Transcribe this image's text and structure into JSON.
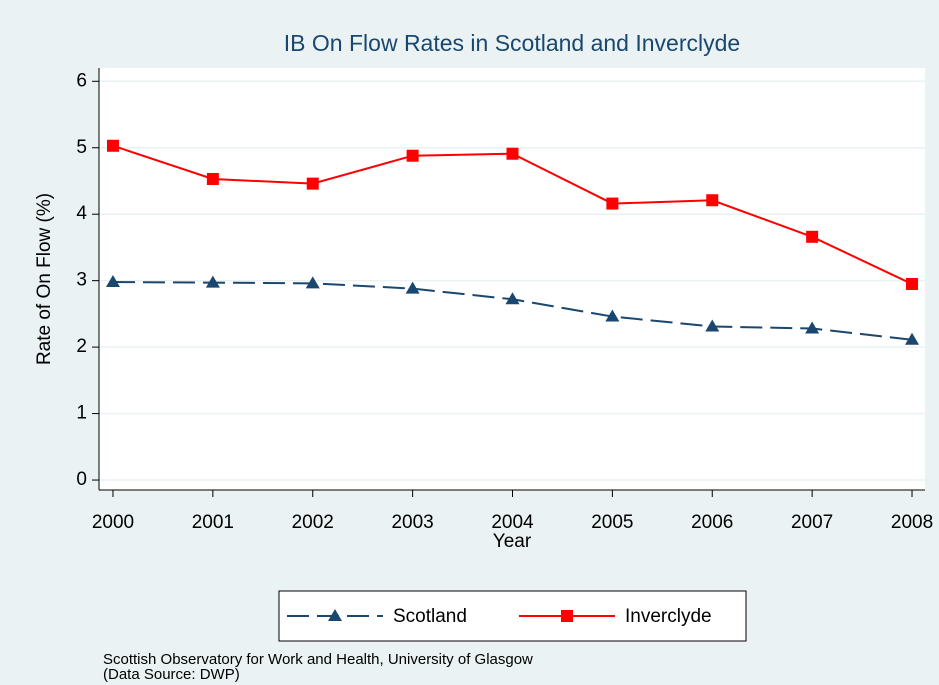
{
  "chart_data": {
    "type": "line",
    "title": "IB On Flow Rates in Scotland and Inverclyde",
    "x_label": "Year",
    "y_label": "Rate of On Flow (%)",
    "x": [
      2000,
      2001,
      2002,
      2003,
      2004,
      2005,
      2006,
      2007,
      2008
    ],
    "series": [
      {
        "name": "Scotland",
        "color": "#1a476f",
        "marker": "triangle",
        "dash": true,
        "values": [
          2.98,
          2.97,
          2.96,
          2.88,
          2.72,
          2.46,
          2.31,
          2.28,
          2.11
        ]
      },
      {
        "name": "Inverclyde",
        "color": "#ff0000",
        "marker": "square",
        "dash": false,
        "values": [
          5.03,
          4.53,
          4.46,
          4.88,
          4.91,
          4.16,
          4.21,
          3.66,
          2.95
        ]
      }
    ],
    "xlim": [
      1999.86,
      2008.13
    ],
    "ylim": [
      -0.15,
      6.2
    ],
    "xticks": [
      2000,
      2001,
      2002,
      2003,
      2004,
      2005,
      2006,
      2007,
      2008
    ],
    "yticks": [
      0,
      1,
      2,
      3,
      4,
      5,
      6
    ],
    "grid": true,
    "legend": "bottom",
    "note": [
      "Scottish Observatory for Work and Health, University of Glasgow",
      "(Data Source: DWP)"
    ]
  }
}
